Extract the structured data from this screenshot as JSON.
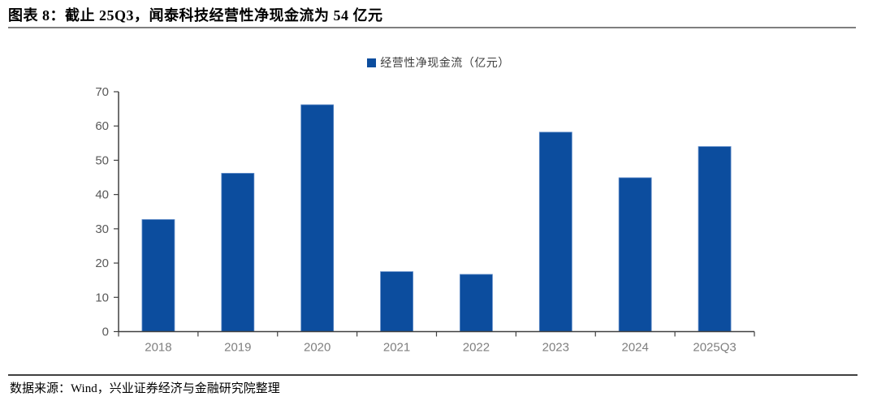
{
  "header": {
    "title": "图表 8：截止 25Q3，闻泰科技经营性净现金流为 54 亿元"
  },
  "footer": {
    "source": "数据来源：Wind，兴业证券经济与金融研究院整理"
  },
  "chart_data": {
    "type": "bar",
    "title": "图表 8：截止 25Q3，闻泰科技经营性净现金流为 54 亿元",
    "legend": "经营性净现金流（亿元）",
    "legend_position": "top-center",
    "categories": [
      "2018",
      "2019",
      "2020",
      "2021",
      "2022",
      "2023",
      "2024",
      "2025Q3"
    ],
    "values": [
      32.7,
      46.2,
      66.2,
      17.5,
      16.7,
      58.2,
      44.9,
      54.0
    ],
    "xlabel": "",
    "ylabel": "",
    "ylim": [
      0,
      70
    ],
    "yticks": [
      0,
      10,
      20,
      30,
      40,
      50,
      60,
      70
    ],
    "grid": "off",
    "bar_color": "#0c4d9e",
    "bar_border_color": "#5e8ac7",
    "axis_color": "#404040",
    "ytick_label_color": "#595959",
    "xtick_label_color": "#7f7f7f"
  }
}
